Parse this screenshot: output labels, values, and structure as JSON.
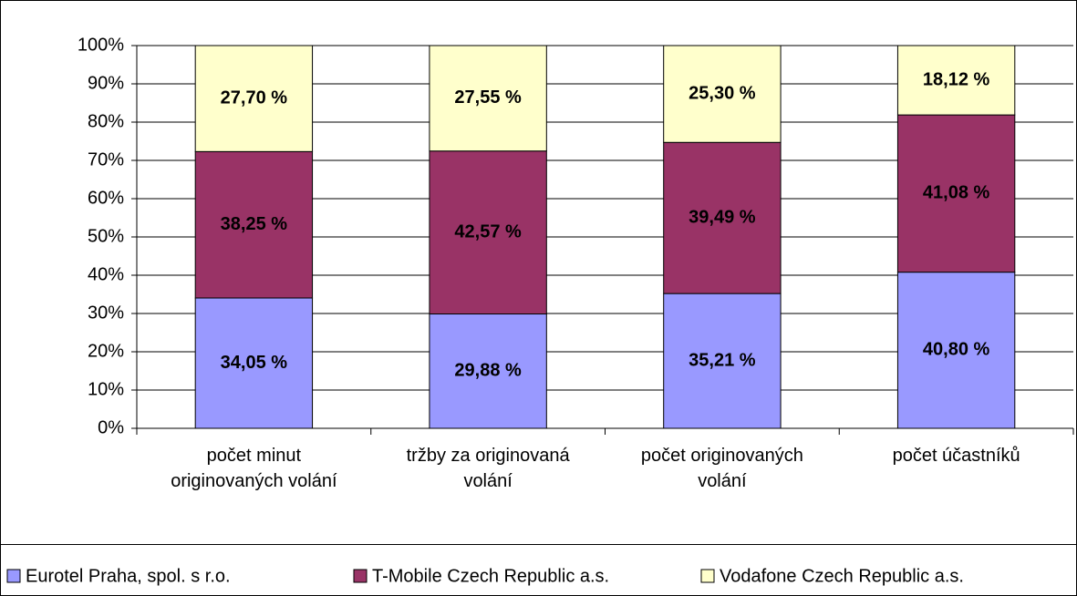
{
  "chart_data": {
    "type": "stacked_bar_100",
    "categories": [
      "počet minut originovaných volání",
      "tržby za originovaná volání",
      "počet originovaných volání",
      "počet účastníků"
    ],
    "series": [
      {
        "name": "Eurotel Praha, spol. s r.o.",
        "color": "#9999ff",
        "values": [
          34.05,
          29.88,
          35.21,
          40.8
        ],
        "value_labels": [
          "34,05 %",
          "29,88 %",
          "35,21 %",
          "40,80 %"
        ]
      },
      {
        "name": "T-Mobile Czech Republic a.s.",
        "color": "#993366",
        "values": [
          38.25,
          42.57,
          39.49,
          41.08
        ],
        "value_labels": [
          "38,25 %",
          "42,57 %",
          "39,49 %",
          "41,08 %"
        ]
      },
      {
        "name": "Vodafone Czech Republic a.s.",
        "color": "#ffffcc",
        "values": [
          27.7,
          27.55,
          25.3,
          18.12
        ],
        "value_labels": [
          "27,70 %",
          "27,55 %",
          "25,30 %",
          "18,12 %"
        ]
      }
    ],
    "ylim": [
      0,
      100
    ],
    "yticks": [
      {
        "value": 0,
        "label": "0%"
      },
      {
        "value": 10,
        "label": "10%"
      },
      {
        "value": 20,
        "label": "20%"
      },
      {
        "value": 30,
        "label": "30%"
      },
      {
        "value": 40,
        "label": "40%"
      },
      {
        "value": 50,
        "label": "50%"
      },
      {
        "value": 60,
        "label": "60%"
      },
      {
        "value": 70,
        "label": "70%"
      },
      {
        "value": 80,
        "label": "80%"
      },
      {
        "value": 90,
        "label": "90%"
      },
      {
        "value": 100,
        "label": "100%"
      }
    ],
    "grid": true,
    "legend": "bottom"
  }
}
